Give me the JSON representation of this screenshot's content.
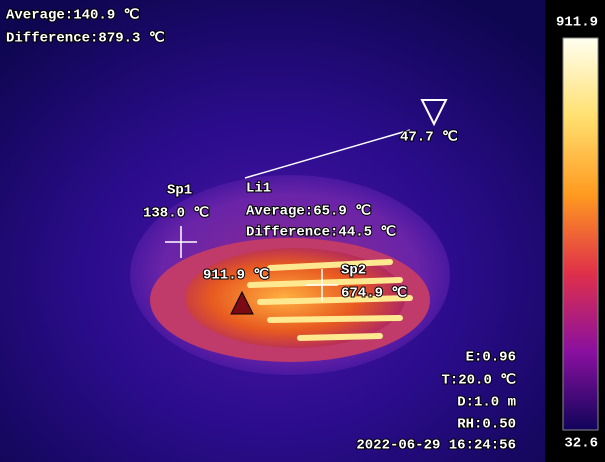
{
  "header": {
    "average": "Average:140.9 ℃",
    "difference": "Difference:879.3 ℃"
  },
  "scale": {
    "max": "911.9",
    "min": "32.6"
  },
  "min_marker": {
    "value": "47.7 ℃"
  },
  "max_marker": {
    "value": "911.9 ℃"
  },
  "spots": [
    {
      "label": "Sp1",
      "value": "138.0 ℃"
    },
    {
      "label": "Sp2",
      "value": "674.9 ℃"
    }
  ],
  "line": {
    "label": "Li1",
    "average": "Average:65.9 ℃",
    "difference": "Difference:44.5 ℃"
  },
  "parameters": {
    "emissivity": "E:0.96",
    "temperature": "T:20.0 ℃",
    "distance": "D:1.0 m",
    "humidity": "RH:0.50"
  },
  "timestamp": "2022-06-29 16:24:56"
}
